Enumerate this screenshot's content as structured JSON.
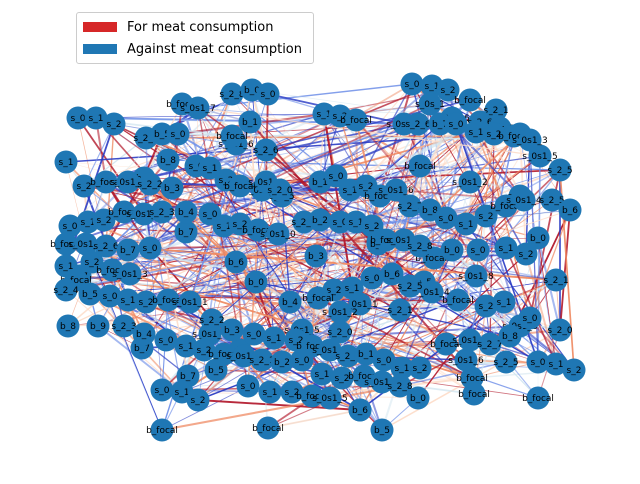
{
  "legend": {
    "for_label": "For meat consumption",
    "against_label": "Against meat consumption",
    "for_color": "#d62728",
    "against_color": "#1f77b4"
  },
  "node_color": "#1f77b4",
  "edge_colors": {
    "strong_for": "#b2182b",
    "for": "#ef8a62",
    "weak_for": "#fddbc7",
    "weak_against": "#d1e5f0",
    "against": "#6f8fe8",
    "strong_against": "#2b3cc4"
  },
  "nodes": [
    {
      "label": "s_0"
    },
    {
      "label": "s_1"
    },
    {
      "label": "s_2"
    },
    {
      "label": "b_focal"
    },
    {
      "label": "s_0s_1"
    },
    {
      "label": "s_2_1"
    },
    {
      "label": "s_0s1_6"
    },
    {
      "label": "s_2_6"
    },
    {
      "label": "s_0s_1"
    },
    {
      "label": "s_2"
    },
    {
      "label": "s_0s1_5"
    },
    {
      "label": "s_2_5"
    },
    {
      "label": "b_focal"
    },
    {
      "label": "s_0s1_2"
    },
    {
      "label": "s_2_7"
    },
    {
      "label": "b_9"
    },
    {
      "label": "b_8"
    },
    {
      "label": "b_1"
    },
    {
      "label": "s_0s1_6"
    },
    {
      "label": "s_2_6"
    },
    {
      "label": "b_focal"
    },
    {
      "label": "s_0s1_7"
    },
    {
      "label": "s_2_5"
    },
    {
      "label": "b_0"
    },
    {
      "label": "b_7"
    },
    {
      "label": "b_7"
    },
    {
      "label": "b_6"
    },
    {
      "label": "b_0"
    },
    {
      "label": "b_4"
    },
    {
      "label": "b_3"
    },
    {
      "label": "b_2"
    },
    {
      "label": "b_focal2"
    },
    {
      "label": "b_5"
    },
    {
      "label": "s_0s1_8"
    },
    {
      "label": "s_2_1"
    },
    {
      "label": "s_0s1_3"
    },
    {
      "label": "s_2_0"
    },
    {
      "label": "b_focal"
    },
    {
      "label": "b_8"
    },
    {
      "label": "b_9"
    },
    {
      "label": "b_7"
    },
    {
      "label": "s_0s1_2"
    },
    {
      "label": "s_2_0"
    },
    {
      "label": "s_0s1_6"
    },
    {
      "label": "s_2_5"
    },
    {
      "label": "b_focal"
    },
    {
      "label": "b_5"
    },
    {
      "label": "b_6"
    },
    {
      "label": "b_7"
    },
    {
      "label": "s_0"
    },
    {
      "label": "s_1"
    },
    {
      "label": "s_2"
    },
    {
      "label": "b_focal"
    },
    {
      "label": "b_focal"
    },
    {
      "label": "b_2"
    },
    {
      "label": "b_5"
    },
    {
      "label": "s_0s1_5"
    },
    {
      "label": "s_2_0"
    },
    {
      "label": "b_focal"
    },
    {
      "label": "s_0"
    },
    {
      "label": "s_1"
    },
    {
      "label": "s_2"
    },
    {
      "label": "b_focal"
    },
    {
      "label": "b_6"
    },
    {
      "label": "s_0s1_1"
    },
    {
      "label": "s_2_1"
    }
  ]
}
